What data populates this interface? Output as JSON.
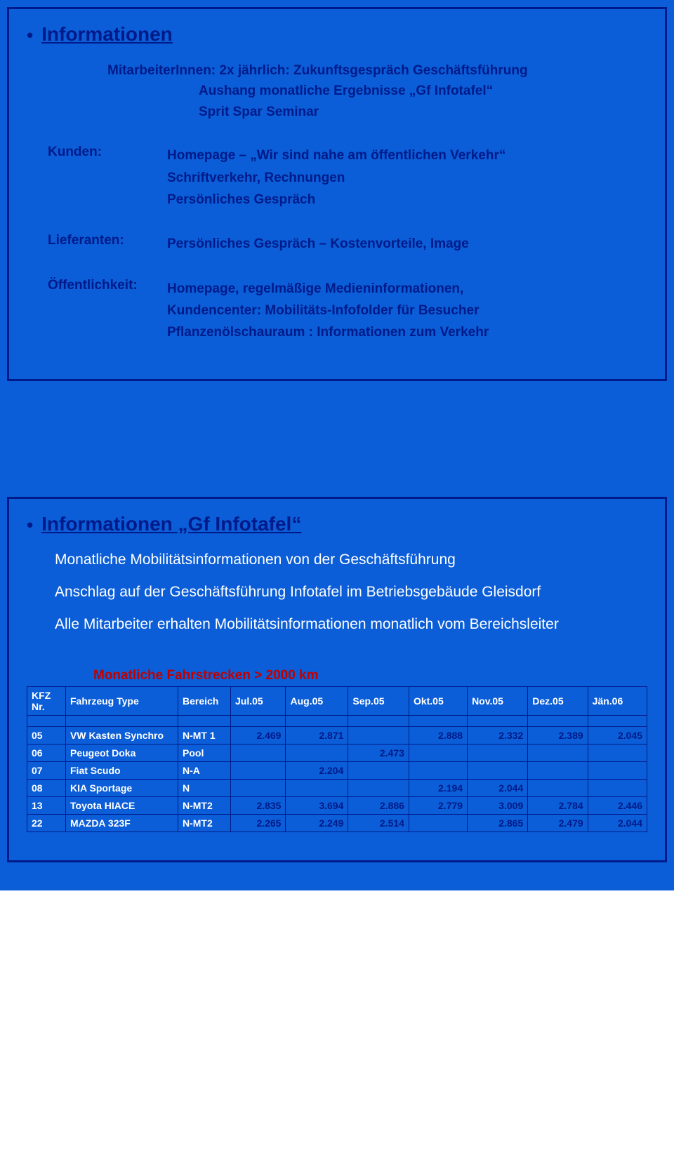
{
  "colors": {
    "page_bg": "#0b5ed7",
    "slide_border": "#001a8a",
    "text_navy": "#001a8a",
    "text_white": "#ffffff",
    "text_red": "#c00000",
    "table_border": "#001a8a"
  },
  "slide1": {
    "title": "Informationen",
    "sub_lines": [
      "MitarbeiterInnen: 2x jährlich: Zukunftsgespräch Geschäftsführung",
      "Aushang monatliche Ergebnisse „Gf Infotafel“",
      "Sprit Spar Seminar"
    ],
    "kunden_label": "Kunden:",
    "kunden_lines": [
      "Homepage – „Wir sind nahe am öffentlichen Verkehr“",
      "Schriftverkehr, Rechnungen",
      "Persönliches Gespräch"
    ],
    "lieferanten_label": "Lieferanten:",
    "lieferanten_lines": [
      "Persönliches Gespräch – Kostenvorteile, Image"
    ],
    "oeffentlich_label": "Öffentlichkeit:",
    "oeffentlich_lines": [
      "Homepage, regelmäßige Medieninformationen,",
      "Kundencenter: Mobilitäts-Infofolder  für Besucher",
      "Pflanzenölschauraum : Informationen zum Verkehr"
    ]
  },
  "slide2": {
    "title": "Informationen „Gf Infotafel“",
    "lines": [
      "Monatliche Mobilitätsinformationen von der Geschäftsführung",
      "Anschlag auf der Geschäftsführung Infotafel im Betriebsgebäude Gleisdorf",
      "Alle Mitarbeiter erhalten Mobilitätsinformationen monatlich vom Bereichsleiter"
    ],
    "table_title": "Monatliche Fahrstrecken > 2000 km",
    "headers": [
      "KFZ Nr.",
      "Fahrzeug Type",
      "Bereich",
      "Jul.05",
      "Aug.05",
      "Sep.05",
      "Okt.05",
      "Nov.05",
      "Dez.05",
      "Jän.06"
    ],
    "rows": [
      {
        "nr": "05",
        "type": "VW Kasten Synchro",
        "bereich": "N-MT 1",
        "vals": [
          "2.469",
          "2.871",
          "",
          "2.888",
          "2.332",
          "2.389",
          "2.045"
        ]
      },
      {
        "nr": "06",
        "type": "Peugeot Doka",
        "bereich": "Pool",
        "vals": [
          "",
          "",
          "2.473",
          "",
          "",
          "",
          ""
        ]
      },
      {
        "nr": "07",
        "type": "Fiat Scudo",
        "bereich": "N-A",
        "vals": [
          "",
          "2.204",
          "",
          "",
          "",
          "",
          ""
        ]
      },
      {
        "nr": "08",
        "type": "KIA Sportage",
        "bereich": "N",
        "vals": [
          "",
          "",
          "",
          "2.194",
          "2.044",
          "",
          ""
        ]
      },
      {
        "nr": "13",
        "type": "Toyota HIACE",
        "bereich": "N-MT2",
        "vals": [
          "2.835",
          "3.694",
          "2.886",
          "2.779",
          "3.009",
          "2.784",
          "2.446"
        ]
      },
      {
        "nr": "22",
        "type": "MAZDA 323F",
        "bereich": "N-MT2",
        "vals": [
          "2.265",
          "2.249",
          "2.514",
          "",
          "2.865",
          "2.479",
          "2.044"
        ]
      }
    ]
  }
}
